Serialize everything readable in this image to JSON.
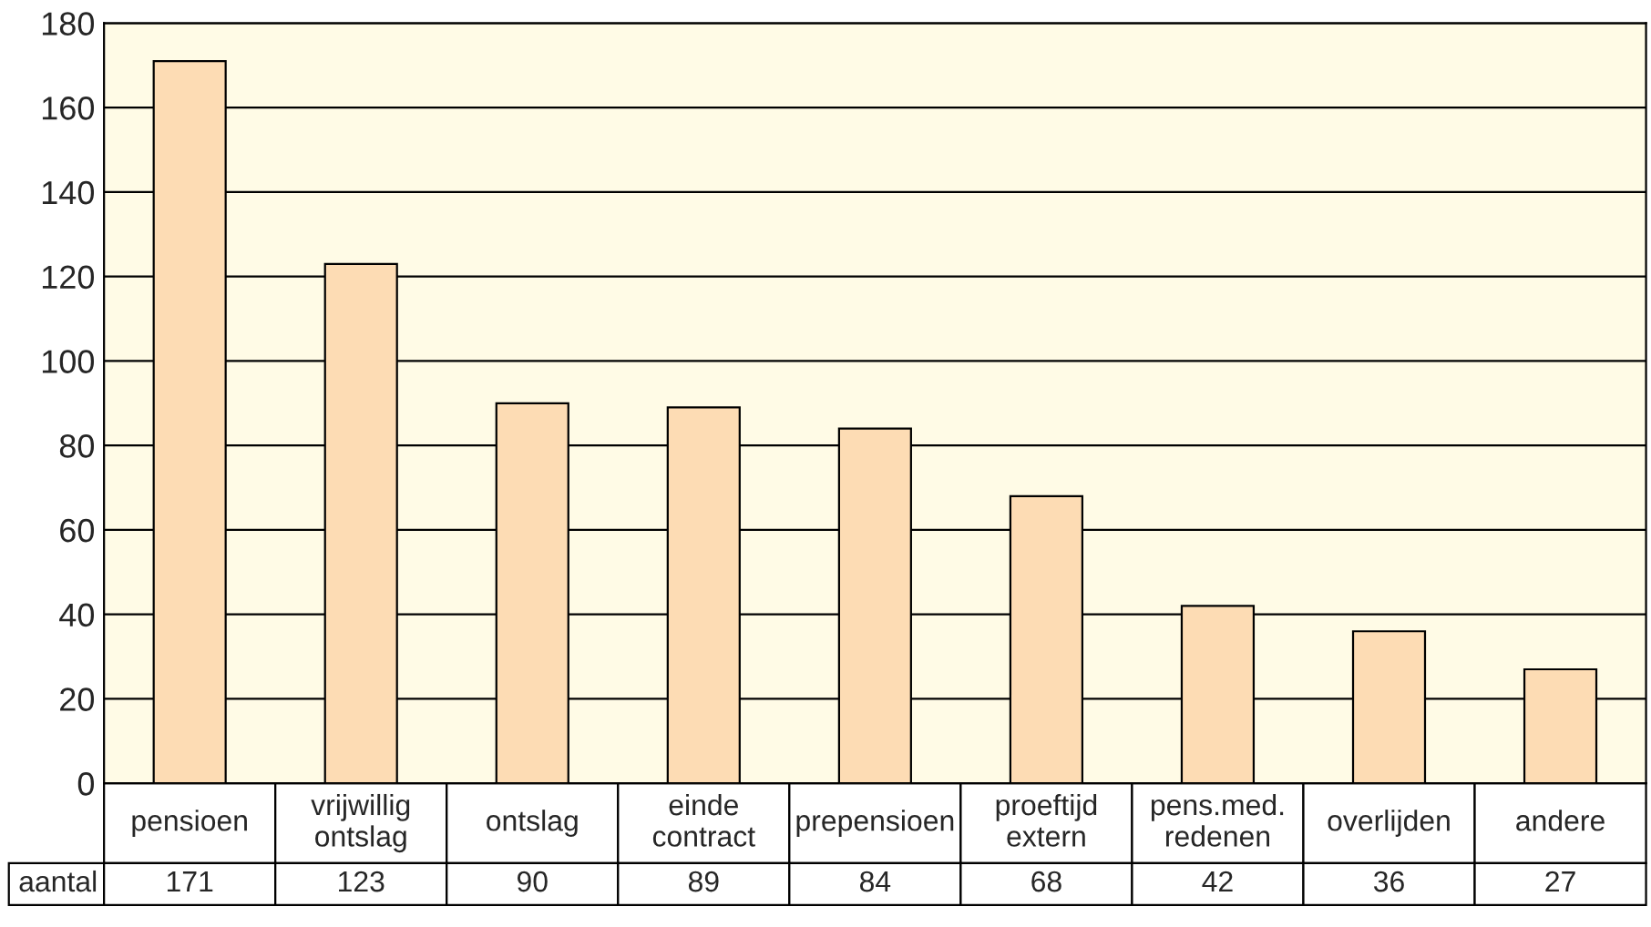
{
  "chart_data": {
    "type": "bar",
    "categories": [
      "pensioen",
      "vrijwillig\nontslag",
      "ontslag",
      "einde\ncontract",
      "prepensioen",
      "proeftijd\nextern",
      "pens.med.\nredenen",
      "overlijden",
      "andere"
    ],
    "series": [
      {
        "name": "aantal",
        "color": "#fddcb4",
        "values": [
          171,
          123,
          90,
          89,
          84,
          68,
          42,
          36,
          27
        ]
      }
    ],
    "ylim": [
      0,
      180
    ],
    "yticks": [
      0,
      20,
      40,
      60,
      80,
      100,
      120,
      140,
      160,
      180
    ],
    "grid": "y",
    "data_labels": true,
    "legend": false
  }
}
